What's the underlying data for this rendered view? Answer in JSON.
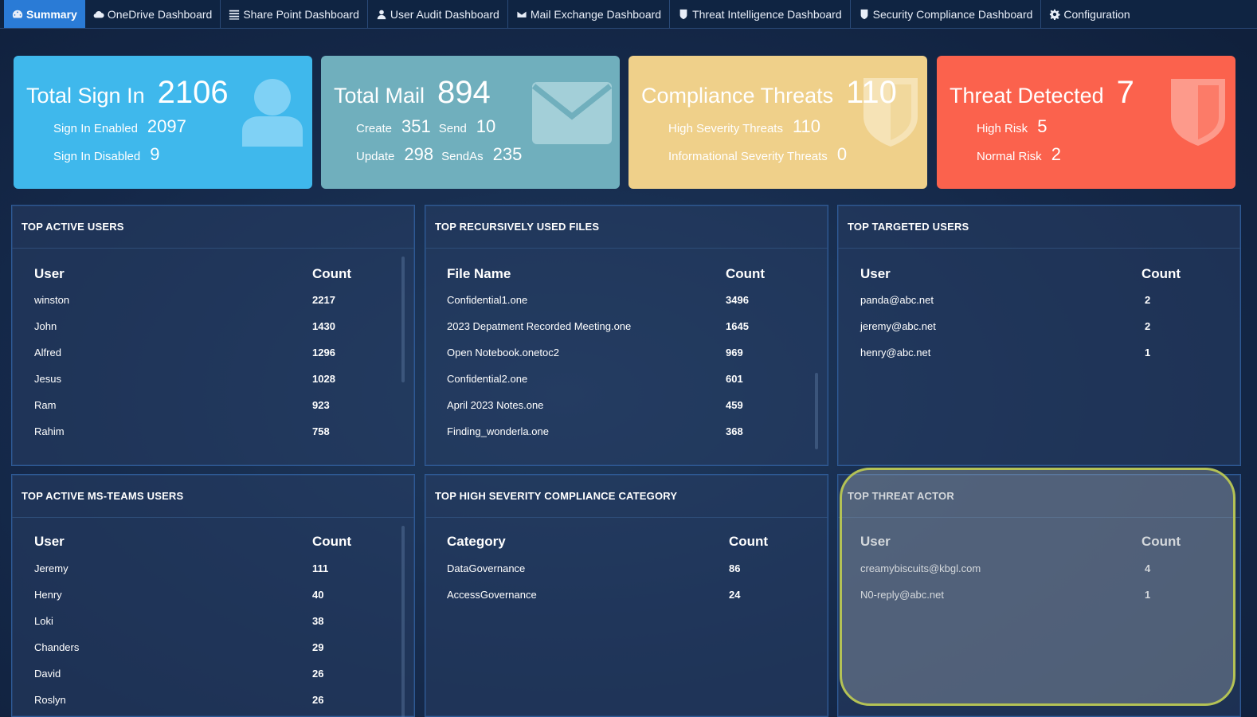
{
  "nav": {
    "items": [
      {
        "label": "Summary",
        "icon": "dashboard-icon"
      },
      {
        "label": "OneDrive Dashboard",
        "icon": "cloud-icon"
      },
      {
        "label": "Share Point Dashboard",
        "icon": "list-icon"
      },
      {
        "label": "User Audit Dashboard",
        "icon": "user-icon"
      },
      {
        "label": "Mail Exchange Dashboard",
        "icon": "envelope-icon"
      },
      {
        "label": "Threat Intelligence Dashboard",
        "icon": "shield-icon"
      },
      {
        "label": "Security Compliance Dashboard",
        "icon": "shield-icon"
      },
      {
        "label": "Configuration",
        "icon": "gear-icon"
      }
    ]
  },
  "cards": {
    "signin": {
      "title": "Total Sign In",
      "total": "2106",
      "enabled_label": "Sign In Enabled",
      "enabled": "2097",
      "disabled_label": "Sign In Disabled",
      "disabled": "9",
      "icon": "user-icon",
      "color": "#3fb8ec"
    },
    "mail": {
      "title": "Total Mail",
      "total": "894",
      "create_label": "Create",
      "create": "351",
      "send_label": "Send",
      "send": "10",
      "update_label": "Update",
      "update": "298",
      "sendas_label": "SendAs",
      "sendas": "235",
      "icon": "envelope-icon",
      "color": "#70afbd"
    },
    "compliance": {
      "title": "Compliance Threats",
      "total": "110",
      "high_label": "High Severity Threats",
      "high": "110",
      "info_label": "Informational Severity Threats",
      "info": "0",
      "icon": "shield-icon",
      "color": "#efd08a"
    },
    "threat": {
      "title": "Threat Detected",
      "total": "7",
      "high_label": "High Risk",
      "high": "5",
      "normal_label": "Normal Risk",
      "normal": "2",
      "icon": "shield-icon",
      "color": "#fb624d"
    }
  },
  "panels": {
    "active_users": {
      "title": "TOP ACTIVE USERS",
      "col1": "User",
      "col2": "Count",
      "rows": [
        [
          "winston",
          "2217"
        ],
        [
          "John",
          "1430"
        ],
        [
          "Alfred",
          "1296"
        ],
        [
          "Jesus",
          "1028"
        ],
        [
          "Ram",
          "923"
        ],
        [
          "Rahim",
          "758"
        ]
      ]
    },
    "files": {
      "title": "TOP RECURSIVELY USED FILES",
      "col1": "File Name",
      "col2": "Count",
      "rows": [
        [
          "Confidential1.one",
          "3496"
        ],
        [
          "2023 Depatment Recorded Meeting.one",
          "1645"
        ],
        [
          "Open Notebook.onetoc2",
          "969"
        ],
        [
          "Confidential2.one",
          "601"
        ],
        [
          "April 2023 Notes.one",
          "459"
        ],
        [
          "Finding_wonderla.one",
          "368"
        ]
      ]
    },
    "targeted": {
      "title": "TOP TARGETED USERS",
      "col1": "User",
      "col2": "Count",
      "rows": [
        [
          "panda@abc.net",
          "2"
        ],
        [
          "jeremy@abc.net",
          "2"
        ],
        [
          "henry@abc.net",
          "1"
        ]
      ]
    },
    "teams": {
      "title": "TOP ACTIVE MS-TEAMS USERS",
      "col1": "User",
      "col2": "Count",
      "rows": [
        [
          "Jeremy",
          "111"
        ],
        [
          "Henry",
          "40"
        ],
        [
          "Loki",
          "38"
        ],
        [
          "Chanders",
          "29"
        ],
        [
          "David",
          "26"
        ],
        [
          "Roslyn",
          "26"
        ]
      ]
    },
    "compliance_cat": {
      "title": "TOP HIGH SEVERITY COMPLIANCE CATEGORY",
      "col1": "Category",
      "col2": "Count",
      "rows": [
        [
          "DataGovernance",
          "86"
        ],
        [
          "AccessGovernance",
          "24"
        ]
      ]
    },
    "threat_actor": {
      "title": "TOP THREAT ACTOR",
      "col1": "User",
      "col2": "Count",
      "rows": [
        [
          "creamybiscuits@kbgl.com",
          "4"
        ],
        [
          "N0-reply@abc.net",
          "1"
        ]
      ]
    }
  }
}
